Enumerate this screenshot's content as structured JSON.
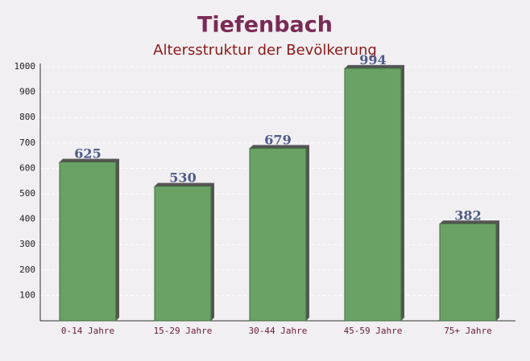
{
  "chart_data": {
    "type": "bar",
    "title": "Tiefenbach",
    "subtitle": "Altersstruktur der Bevölkerung",
    "categories": [
      "0-14 Jahre",
      "15-29 Jahre",
      "30-44 Jahre",
      "45-59 Jahre",
      "75+ Jahre"
    ],
    "values": [
      625,
      530,
      679,
      994,
      382
    ],
    "color": "#6aa265",
    "ylim": [
      0,
      1000
    ],
    "yticks": [
      100,
      200,
      300,
      400,
      500,
      600,
      700,
      800,
      900,
      1000
    ],
    "grid": true
  }
}
